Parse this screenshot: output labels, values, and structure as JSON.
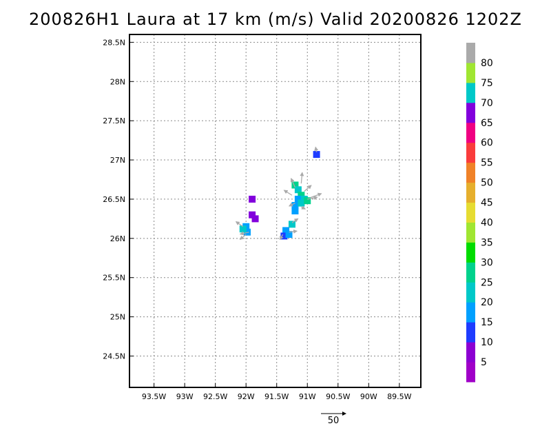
{
  "title": "200826H1 Laura at 17 km (m/s) Valid 20200826 1202Z",
  "map": {
    "lon_range": [
      -93.9,
      -89.15
    ],
    "lat_range": [
      24.1,
      28.6
    ],
    "lat_ticks": [
      {
        "value": 28.5,
        "label": "28.5N"
      },
      {
        "value": 28.0,
        "label": "28N"
      },
      {
        "value": 27.5,
        "label": "27.5N"
      },
      {
        "value": 27.0,
        "label": "27N"
      },
      {
        "value": 26.5,
        "label": "26.5N"
      },
      {
        "value": 26.0,
        "label": "26N"
      },
      {
        "value": 25.5,
        "label": "25.5N"
      },
      {
        "value": 25.0,
        "label": "25N"
      },
      {
        "value": 24.5,
        "label": "24.5N"
      }
    ],
    "lon_ticks": [
      {
        "value": -93.5,
        "label": "93.5W"
      },
      {
        "value": -93.0,
        "label": "93W"
      },
      {
        "value": -92.5,
        "label": "92.5W"
      },
      {
        "value": -92.0,
        "label": "92W"
      },
      {
        "value": -91.5,
        "label": "91.5W"
      },
      {
        "value": -91.0,
        "label": "91W"
      },
      {
        "value": -90.5,
        "label": "90.5W"
      },
      {
        "value": -90.0,
        "label": "90W"
      },
      {
        "value": -89.5,
        "label": "89.5W"
      }
    ],
    "grid": "dotted"
  },
  "colorbar": {
    "colors": [
      "#a000c8",
      "#8c00d2",
      "#1e3cff",
      "#00a0ff",
      "#00c8c8",
      "#00d28c",
      "#00dc00",
      "#a0e632",
      "#e6dc32",
      "#e6af2d",
      "#f08228",
      "#fa3c3c",
      "#f00082",
      "#8200dc",
      "#00c8c8",
      "#a0e632",
      "#aaaaaa"
    ],
    "labels": [
      "5",
      "10",
      "15",
      "20",
      "25",
      "30",
      "35",
      "40",
      "45",
      "50",
      "55",
      "60",
      "65",
      "70",
      "75",
      "80"
    ]
  },
  "wind_patches": [
    {
      "lon": -91.2,
      "lat": 26.68,
      "color": "#00d28c"
    },
    {
      "lon": -91.15,
      "lat": 26.62,
      "color": "#00c8c8"
    },
    {
      "lon": -91.1,
      "lat": 26.55,
      "color": "#00d28c"
    },
    {
      "lon": -91.15,
      "lat": 26.5,
      "color": "#00a0ff"
    },
    {
      "lon": -91.05,
      "lat": 26.5,
      "color": "#00c8c8"
    },
    {
      "lon": -91.2,
      "lat": 26.42,
      "color": "#00a0ff"
    },
    {
      "lon": -91.1,
      "lat": 26.45,
      "color": "#00c8c8"
    },
    {
      "lon": -91.0,
      "lat": 26.48,
      "color": "#00d28c"
    },
    {
      "lon": -91.2,
      "lat": 26.35,
      "color": "#00a0ff"
    },
    {
      "lon": -91.25,
      "lat": 26.18,
      "color": "#00c8c8"
    },
    {
      "lon": -91.35,
      "lat": 26.1,
      "color": "#00a0ff"
    },
    {
      "lon": -91.38,
      "lat": 26.03,
      "color": "#1e3cff"
    },
    {
      "lon": -91.3,
      "lat": 26.05,
      "color": "#00a0ff"
    },
    {
      "lon": -91.9,
      "lat": 26.3,
      "color": "#8200dc"
    },
    {
      "lon": -91.85,
      "lat": 26.25,
      "color": "#8200dc"
    },
    {
      "lon": -91.9,
      "lat": 26.5,
      "color": "#8200dc"
    },
    {
      "lon": -92.0,
      "lat": 26.15,
      "color": "#00a0ff"
    },
    {
      "lon": -91.98,
      "lat": 26.08,
      "color": "#00a0ff"
    },
    {
      "lon": -92.05,
      "lat": 26.12,
      "color": "#00c8c8"
    },
    {
      "lon": -90.85,
      "lat": 27.07,
      "color": "#1e3cff"
    }
  ],
  "wind_vectors": [
    {
      "lon": -91.2,
      "lat": 26.65,
      "u": -8,
      "v": 18
    },
    {
      "lon": -91.1,
      "lat": 26.7,
      "u": 2,
      "v": 22
    },
    {
      "lon": -91.05,
      "lat": 26.6,
      "u": 14,
      "v": 12
    },
    {
      "lon": -91.0,
      "lat": 26.5,
      "u": 20,
      "v": 4
    },
    {
      "lon": -90.95,
      "lat": 26.52,
      "u": 22,
      "v": 8
    },
    {
      "lon": -91.25,
      "lat": 26.55,
      "u": -16,
      "v": 10
    },
    {
      "lon": -91.2,
      "lat": 26.45,
      "u": -12,
      "v": -6
    },
    {
      "lon": -91.1,
      "lat": 26.4,
      "u": 8,
      "v": -4
    },
    {
      "lon": -91.25,
      "lat": 26.2,
      "u": 12,
      "v": 8
    },
    {
      "lon": -91.4,
      "lat": 26.05,
      "u": -6,
      "v": -10
    },
    {
      "lon": -91.3,
      "lat": 26.08,
      "u": 16,
      "v": 2
    },
    {
      "lon": -92.05,
      "lat": 26.15,
      "u": -14,
      "v": 10
    },
    {
      "lon": -92.0,
      "lat": 26.05,
      "u": -12,
      "v": -10
    },
    {
      "lon": -91.95,
      "lat": 26.08,
      "u": -18,
      "v": -4
    },
    {
      "lon": -90.85,
      "lat": 27.1,
      "u": -2,
      "v": 10
    }
  ],
  "reference_vector": {
    "label": "50",
    "value": 50
  }
}
